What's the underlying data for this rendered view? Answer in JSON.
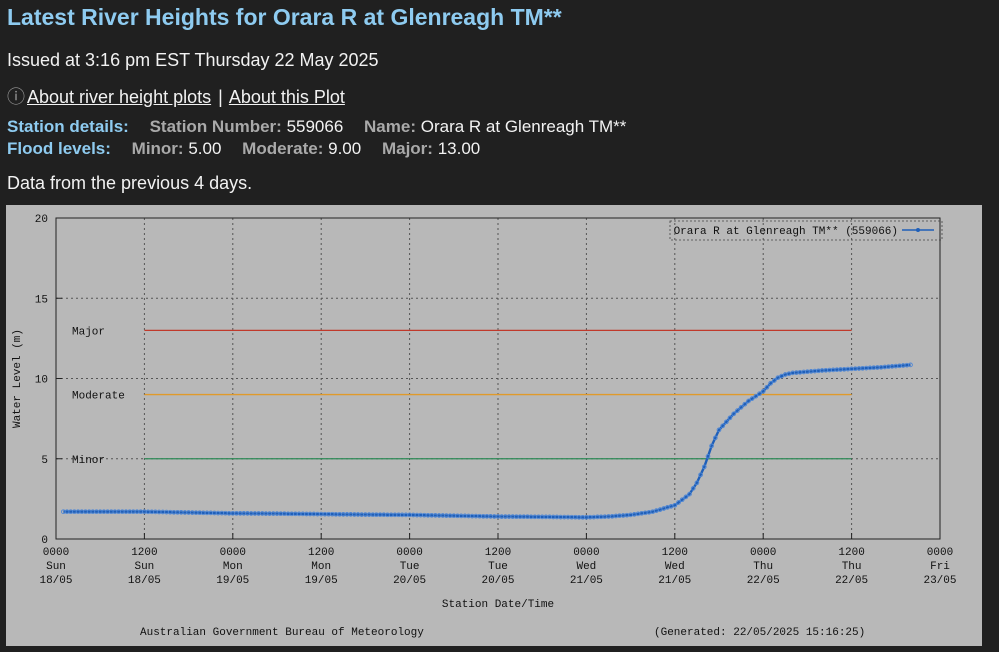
{
  "header": {
    "title": "Latest River Heights for Orara R at Glenreagh TM**",
    "issued": "Issued at 3:16 pm EST Thursday 22 May 2025",
    "link_about_plots": "About river height plots",
    "link_separator": "|",
    "link_about_this": "About this Plot",
    "icon": "info-icon"
  },
  "station": {
    "details_label": "Station details:",
    "number_label": "Station Number:",
    "number": "559066",
    "name_label": "Name:",
    "name": "Orara R at Glenreagh TM**"
  },
  "flood": {
    "label": "Flood levels:",
    "minor_label": "Minor:",
    "minor": "5.00",
    "moderate_label": "Moderate:",
    "moderate": "9.00",
    "major_label": "Major:",
    "major": "13.00"
  },
  "data_note": "Data from the previous 4 days.",
  "chart_data": {
    "type": "line",
    "ylabel": "Water Level (m)",
    "xlabel": "Station Date/Time",
    "ylim": [
      0,
      20
    ],
    "yticks": [
      0,
      5,
      10,
      15,
      20
    ],
    "xlim": [
      0,
      120
    ],
    "x_unit": "hours from 0000 Sun 18/05",
    "xticks": [
      {
        "time": "0000",
        "day": "Sun",
        "date": "18/05"
      },
      {
        "time": "1200",
        "day": "Sun",
        "date": "18/05"
      },
      {
        "time": "0000",
        "day": "Mon",
        "date": "19/05"
      },
      {
        "time": "1200",
        "day": "Mon",
        "date": "19/05"
      },
      {
        "time": "0000",
        "day": "Tue",
        "date": "20/05"
      },
      {
        "time": "1200",
        "day": "Tue",
        "date": "20/05"
      },
      {
        "time": "0000",
        "day": "Wed",
        "date": "21/05"
      },
      {
        "time": "1200",
        "day": "Wed",
        "date": "21/05"
      },
      {
        "time": "0000",
        "day": "Thu",
        "date": "22/05"
      },
      {
        "time": "1200",
        "day": "Thu",
        "date": "22/05"
      },
      {
        "time": "0000",
        "day": "Fri",
        "date": "23/05"
      }
    ],
    "grid": true,
    "legend_position": "top-right",
    "series": [
      {
        "name": "Orara R at Glenreagh TM** (559066)",
        "color": "#1f5fb8",
        "points": [
          [
            1,
            1.7
          ],
          [
            6,
            1.7
          ],
          [
            12,
            1.7
          ],
          [
            18,
            1.65
          ],
          [
            24,
            1.6
          ],
          [
            30,
            1.58
          ],
          [
            36,
            1.55
          ],
          [
            42,
            1.52
          ],
          [
            48,
            1.5
          ],
          [
            54,
            1.45
          ],
          [
            60,
            1.4
          ],
          [
            66,
            1.38
          ],
          [
            72,
            1.35
          ],
          [
            75,
            1.4
          ],
          [
            78,
            1.5
          ],
          [
            81,
            1.7
          ],
          [
            84,
            2.1
          ],
          [
            86,
            2.8
          ],
          [
            87,
            3.5
          ],
          [
            88,
            4.5
          ],
          [
            89,
            5.8
          ],
          [
            90,
            6.8
          ],
          [
            92,
            7.8
          ],
          [
            94,
            8.6
          ],
          [
            96,
            9.2
          ],
          [
            97,
            9.7
          ],
          [
            98,
            10.05
          ],
          [
            99,
            10.25
          ],
          [
            100,
            10.35
          ],
          [
            104,
            10.5
          ],
          [
            108,
            10.6
          ],
          [
            112,
            10.7
          ],
          [
            116,
            10.85
          ]
        ]
      }
    ],
    "thresholds": [
      {
        "name": "Major",
        "value": 13,
        "color": "#c0392b"
      },
      {
        "name": "Moderate",
        "value": 9,
        "color": "#e09a2a"
      },
      {
        "name": "Minor",
        "value": 5,
        "color": "#2e8b57"
      }
    ],
    "threshold_span": [
      12,
      108
    ],
    "footer_left": "Australian Government Bureau of Meteorology",
    "footer_right": "(Generated: 22/05/2025 15:16:25)"
  }
}
